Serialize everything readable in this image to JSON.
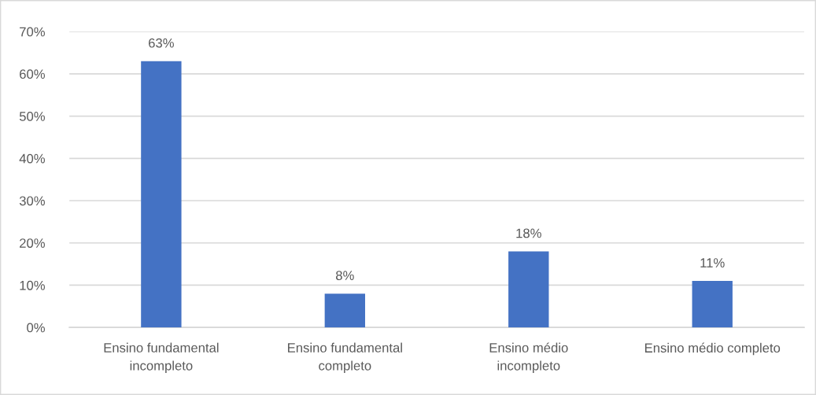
{
  "chart_data": {
    "type": "bar",
    "categories": [
      "Ensino fundamental incompleto",
      "Ensino fundamental completo",
      "Ensino médio incompleto",
      "Ensino médio completo"
    ],
    "values": [
      63,
      8,
      18,
      11
    ],
    "color": "#4472c4",
    "value_labels": [
      "63%",
      "8%",
      "18%",
      "11%"
    ],
    "ylim": [
      0,
      70
    ],
    "yticks": [
      {
        "value": 0,
        "label": "0%"
      },
      {
        "value": 10,
        "label": "10%"
      },
      {
        "value": 20,
        "label": "20%"
      },
      {
        "value": 30,
        "label": "30%"
      },
      {
        "value": 40,
        "label": "40%"
      },
      {
        "value": 50,
        "label": "50%"
      },
      {
        "value": 60,
        "label": "60%"
      },
      {
        "value": 70,
        "label": "70%"
      }
    ],
    "grid": "y"
  }
}
